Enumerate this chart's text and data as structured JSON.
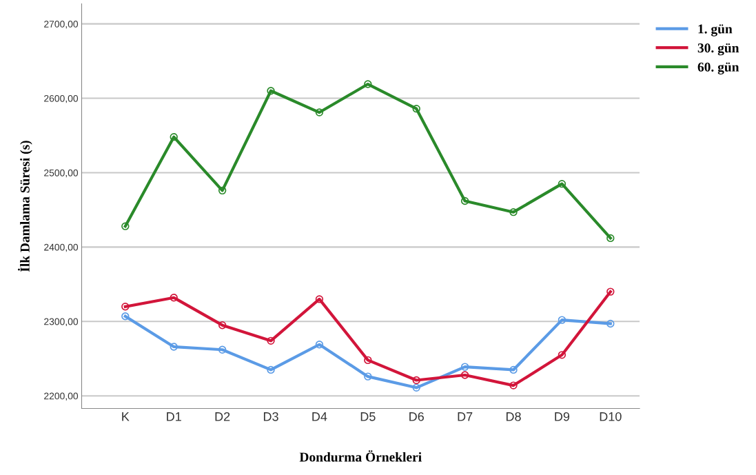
{
  "chart_data": {
    "type": "line",
    "xlabel": "Dondurma Örnekleri",
    "ylabel": "İlk Damlama Süresi (s)",
    "categories": [
      "K",
      "D1",
      "D2",
      "D3",
      "D4",
      "D5",
      "D6",
      "D7",
      "D8",
      "D9",
      "D10"
    ],
    "series": [
      {
        "name": "1. gün",
        "color": "#5b9be6",
        "values": [
          2307,
          2266,
          2262,
          2235,
          2269,
          2226,
          2211,
          2239,
          2235,
          2302,
          2297
        ]
      },
      {
        "name": "30. gün",
        "color": "#d2153a",
        "values": [
          2320,
          2332,
          2295,
          2274,
          2330,
          2248,
          2221,
          2228,
          2214,
          2255,
          2340
        ]
      },
      {
        "name": "60. gün",
        "color": "#2a8a2a",
        "values": [
          2428,
          2548,
          2476,
          2610,
          2581,
          2619,
          2586,
          2462,
          2447,
          2485,
          2412
        ]
      }
    ],
    "ylim": [
      2183,
      2727
    ],
    "yticks": [
      {
        "value": 2200,
        "label": "2200,00"
      },
      {
        "value": 2300,
        "label": "2300,00"
      },
      {
        "value": 2400,
        "label": "2400,00"
      },
      {
        "value": 2500,
        "label": "2500,00"
      },
      {
        "value": 2600,
        "label": "2600,00"
      },
      {
        "value": 2700,
        "label": "2700,00"
      }
    ],
    "grid": "y",
    "legend": "top right",
    "marker": "circle",
    "line_style": "solid"
  }
}
